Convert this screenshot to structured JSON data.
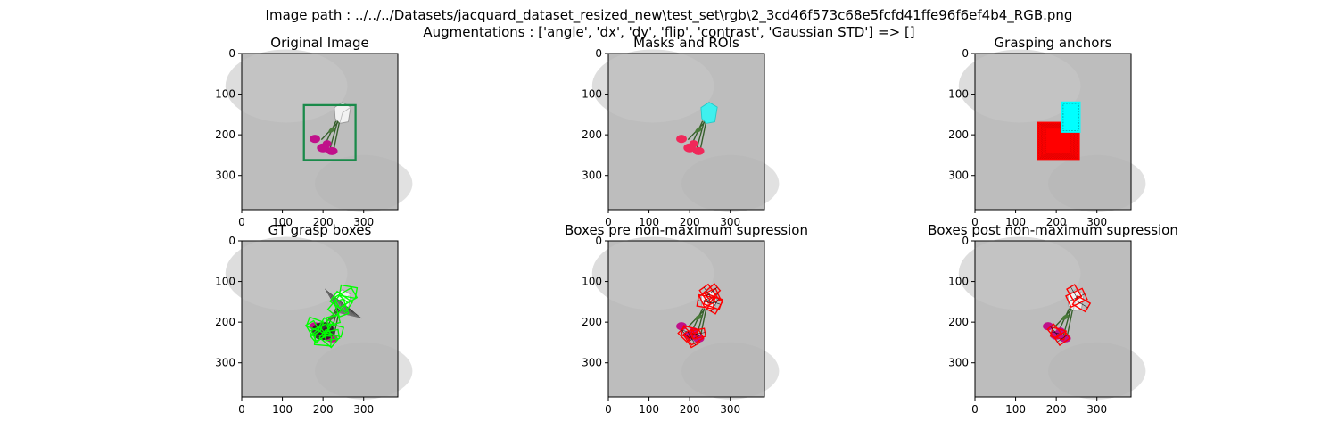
{
  "figure": {
    "suptitle_line1": "Image path : ../../../Datasets/jacquard_dataset_resized_new\\test_set\\rgb\\2_3cd46f573c68e5fcfd41ffe96f6ef4b4_RGB.png",
    "suptitle_line2": "Augmentations : ['angle', 'dx', 'dy', 'flip', 'contrast', 'Gaussian STD'] => []"
  },
  "colors": {
    "background_gray": "#bdbdbd",
    "flower_magenta": "#c0108a",
    "mask_red": "#f0285a",
    "mask_cyan": "#3ff0ee",
    "anchor_red": "#ff0000",
    "anchor_cyan": "#00ffff",
    "roi_green": "#1a8a4a",
    "gt_green": "#00ff00",
    "box_red": "#ff0000"
  },
  "chart_data": [
    {
      "type": "image",
      "name": "original",
      "title": "Original Image",
      "xlim": [
        0,
        384
      ],
      "ylim": [
        384,
        0
      ],
      "xticks": [
        0,
        100,
        200,
        300
      ],
      "yticks": [
        0,
        100,
        200,
        300
      ],
      "bbox_data": [
        153,
        127,
        280,
        262
      ]
    },
    {
      "type": "image",
      "name": "masks",
      "title": "Masks and ROIs",
      "xlim": [
        0,
        384
      ],
      "ylim": [
        384,
        0
      ],
      "xticks": [
        0,
        100,
        200,
        300
      ],
      "yticks": [
        0,
        100,
        200,
        300
      ]
    },
    {
      "type": "image",
      "name": "anchors",
      "title": "Grasping anchors",
      "xlim": [
        0,
        384
      ],
      "ylim": [
        384,
        0
      ],
      "xticks": [
        0,
        100,
        200,
        300
      ],
      "yticks": [
        0,
        100,
        200,
        300
      ],
      "red_region": [
        153,
        168,
        258,
        262
      ],
      "cyan_region": [
        212,
        118,
        260,
        195
      ]
    },
    {
      "type": "image",
      "name": "gt",
      "title": "GT grasp boxes",
      "xlim": [
        0,
        384
      ],
      "ylim": [
        384,
        0
      ],
      "xticks": [
        0,
        100,
        200,
        300
      ],
      "yticks": [
        0,
        100,
        200,
        300
      ]
    },
    {
      "type": "image",
      "name": "pre-nms",
      "title": "Boxes pre non-maximum supression",
      "xlim": [
        0,
        384
      ],
      "ylim": [
        384,
        0
      ],
      "xticks": [
        0,
        100,
        200,
        300
      ],
      "yticks": [
        0,
        100,
        200,
        300
      ]
    },
    {
      "type": "image",
      "name": "post-nms",
      "title": "Boxes post non-maximum supression",
      "xlim": [
        0,
        384
      ],
      "ylim": [
        384,
        0
      ],
      "xticks": [
        0,
        100,
        200,
        300
      ],
      "yticks": [
        0,
        100,
        200,
        300
      ]
    }
  ]
}
